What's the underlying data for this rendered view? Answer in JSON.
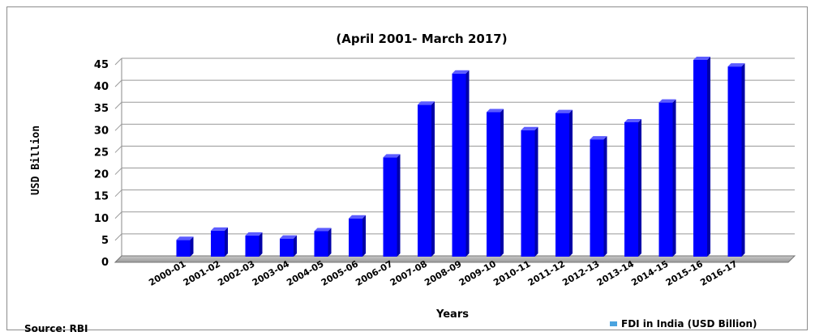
{
  "chart_data": {
    "type": "bar",
    "title": "(April 2001- March 2017)",
    "xlabel": "Years",
    "ylabel": "USD Billion",
    "ylim": [
      0,
      45
    ],
    "yticks": [
      "0",
      "5",
      "10",
      "15",
      "20",
      "25",
      "30",
      "35",
      "40",
      "45"
    ],
    "grid": true,
    "legend_position": "bottom-right",
    "categories": [
      "2000-01",
      "2001-02",
      "2002-03",
      "2003-04",
      "2004-05",
      "2005-06",
      "2006-07",
      "2007-08",
      "2008-09",
      "2009-10",
      "2010-11",
      "2011-12",
      "2012-13",
      "2013-14",
      "2014-15",
      "2015-16",
      "2016-17"
    ],
    "series": [
      {
        "name": "FDI in India (USD Billion)",
        "color": "#0000ff",
        "values": [
          4.0,
          6.1,
          5.0,
          4.3,
          6.0,
          8.9,
          22.8,
          34.8,
          41.9,
          33.1,
          29.0,
          32.9,
          26.9,
          30.8,
          35.3,
          45.0,
          43.5
        ]
      }
    ],
    "source": "Source: RBI"
  }
}
